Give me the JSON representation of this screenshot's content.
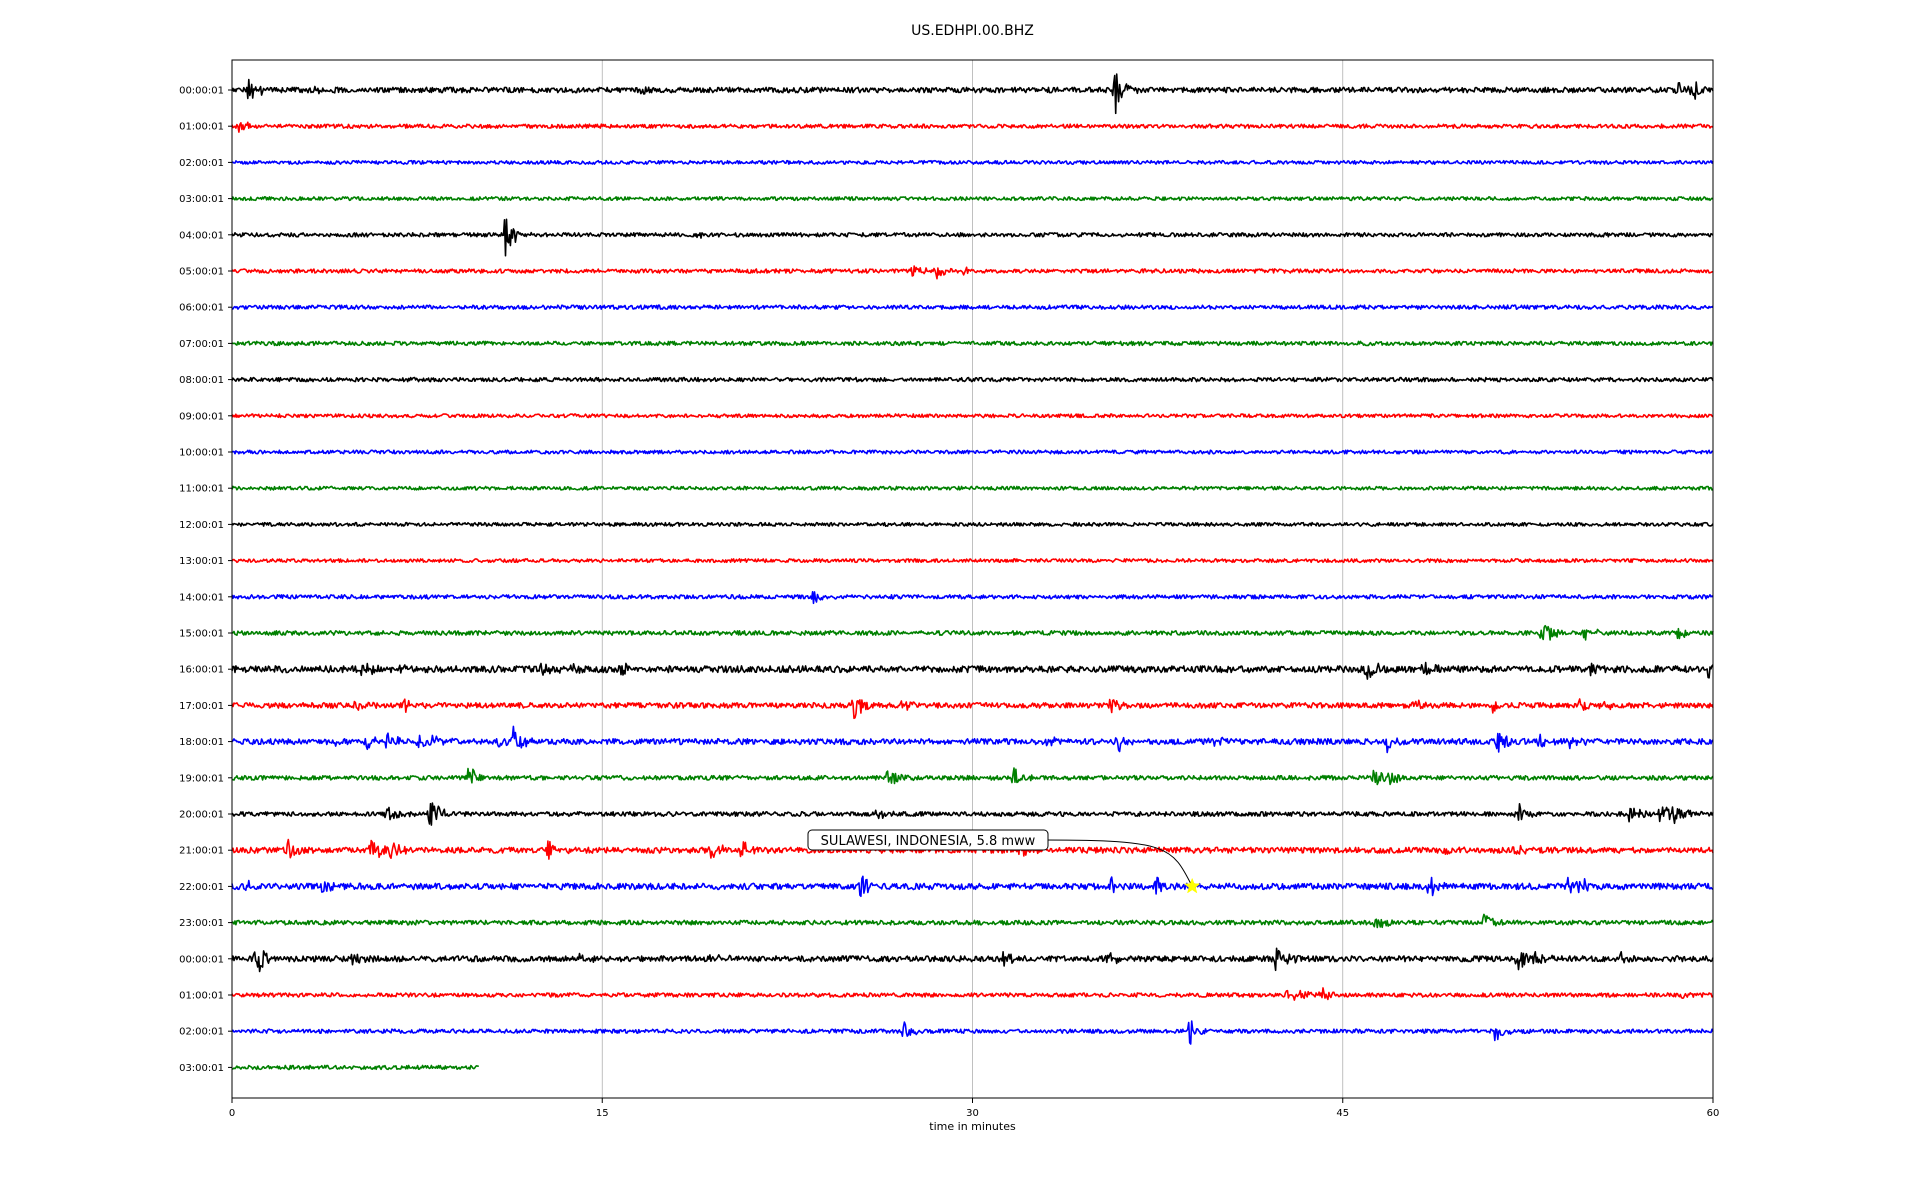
{
  "chart_data": {
    "type": "line",
    "title": "US.EDHPI.00.BHZ",
    "xlabel": "time in minutes",
    "ylabel": "",
    "xlim": [
      0,
      60
    ],
    "grid": true,
    "legend": "none",
    "x_ticks": [
      {
        "value": 0,
        "label": "0"
      },
      {
        "value": 15,
        "label": "15"
      },
      {
        "value": 30,
        "label": "30"
      },
      {
        "value": 45,
        "label": "45"
      },
      {
        "value": 60,
        "label": "60"
      }
    ],
    "trace_colors": [
      "#000000",
      "#ff0000",
      "#0000ff",
      "#008000"
    ],
    "traces": [
      {
        "label": "00:00:01",
        "color": "#000000",
        "noise": 1.2,
        "events": [
          {
            "t": 0.7,
            "amp": 8
          },
          {
            "t": 3.1,
            "amp": 5
          },
          {
            "t": 16.6,
            "amp": 3
          },
          {
            "t": 35.8,
            "amp": 14
          },
          {
            "t": 58.6,
            "amp": 6
          },
          {
            "t": 59.2,
            "amp": 7
          }
        ],
        "end_minute": 60
      },
      {
        "label": "01:00:01",
        "color": "#ff0000",
        "noise": 0.9,
        "events": [
          {
            "t": 0.3,
            "amp": 4
          }
        ],
        "end_minute": 60
      },
      {
        "label": "02:00:01",
        "color": "#0000ff",
        "noise": 0.8,
        "events": [],
        "end_minute": 60
      },
      {
        "label": "03:00:01",
        "color": "#008000",
        "noise": 0.8,
        "events": [],
        "end_minute": 60
      },
      {
        "label": "04:00:01",
        "color": "#000000",
        "noise": 0.9,
        "events": [
          {
            "t": 11.1,
            "amp": 16
          },
          {
            "t": 18.9,
            "amp": 2
          }
        ],
        "end_minute": 60
      },
      {
        "label": "05:00:01",
        "color": "#ff0000",
        "noise": 0.9,
        "events": [
          {
            "t": 27.6,
            "amp": 5
          },
          {
            "t": 28.5,
            "amp": 6
          },
          {
            "t": 29.7,
            "amp": 5
          }
        ],
        "end_minute": 60
      },
      {
        "label": "06:00:01",
        "color": "#0000ff",
        "noise": 0.9,
        "events": [],
        "end_minute": 60
      },
      {
        "label": "07:00:01",
        "color": "#008000",
        "noise": 0.9,
        "events": [],
        "end_minute": 60
      },
      {
        "label": "08:00:01",
        "color": "#000000",
        "noise": 0.9,
        "events": [
          {
            "t": 27.9,
            "amp": 2
          }
        ],
        "end_minute": 60
      },
      {
        "label": "09:00:01",
        "color": "#ff0000",
        "noise": 0.8,
        "events": [],
        "end_minute": 60
      },
      {
        "label": "10:00:01",
        "color": "#0000ff",
        "noise": 0.8,
        "events": [],
        "end_minute": 60
      },
      {
        "label": "11:00:01",
        "color": "#008000",
        "noise": 0.8,
        "events": [],
        "end_minute": 60
      },
      {
        "label": "12:00:01",
        "color": "#000000",
        "noise": 0.8,
        "events": [],
        "end_minute": 60
      },
      {
        "label": "13:00:01",
        "color": "#ff0000",
        "noise": 0.8,
        "events": [],
        "end_minute": 60
      },
      {
        "label": "14:00:01",
        "color": "#0000ff",
        "noise": 0.9,
        "events": [
          {
            "t": 23.5,
            "amp": 5
          }
        ],
        "end_minute": 60
      },
      {
        "label": "15:00:01",
        "color": "#008000",
        "noise": 1.0,
        "events": [
          {
            "t": 53.1,
            "amp": 10
          },
          {
            "t": 54.8,
            "amp": 5
          },
          {
            "t": 58.6,
            "amp": 5
          }
        ],
        "end_minute": 60
      },
      {
        "label": "16:00:01",
        "color": "#000000",
        "noise": 1.5,
        "events": [
          {
            "t": 5.3,
            "amp": 8
          },
          {
            "t": 6.8,
            "amp": 3
          },
          {
            "t": 12.5,
            "amp": 4
          },
          {
            "t": 13.8,
            "amp": 4
          },
          {
            "t": 15.8,
            "amp": 5
          },
          {
            "t": 46.0,
            "amp": 10
          },
          {
            "t": 48.3,
            "amp": 4
          },
          {
            "t": 55.0,
            "amp": 4
          },
          {
            "t": 59.8,
            "amp": 5
          }
        ],
        "end_minute": 60
      },
      {
        "label": "17:00:01",
        "color": "#ff0000",
        "noise": 1.2,
        "events": [
          {
            "t": 5.0,
            "amp": 4
          },
          {
            "t": 7.0,
            "amp": 5
          },
          {
            "t": 25.2,
            "amp": 10
          },
          {
            "t": 27.2,
            "amp": 3
          },
          {
            "t": 35.6,
            "amp": 5
          },
          {
            "t": 47.9,
            "amp": 4
          },
          {
            "t": 51.1,
            "amp": 4
          },
          {
            "t": 54.5,
            "amp": 6
          },
          {
            "t": 55.5,
            "amp": 4
          }
        ],
        "end_minute": 60
      },
      {
        "label": "18:00:01",
        "color": "#0000ff",
        "noise": 1.3,
        "events": [
          {
            "t": 3.8,
            "amp": 4
          },
          {
            "t": 5.5,
            "amp": 5
          },
          {
            "t": 6.3,
            "amp": 6
          },
          {
            "t": 7.6,
            "amp": 5
          },
          {
            "t": 8.1,
            "amp": 4
          },
          {
            "t": 10.8,
            "amp": 7
          },
          {
            "t": 11.4,
            "amp": 9
          },
          {
            "t": 33.1,
            "amp": 4
          },
          {
            "t": 35.9,
            "amp": 7
          },
          {
            "t": 39.6,
            "amp": 5
          },
          {
            "t": 46.8,
            "amp": 6
          },
          {
            "t": 51.3,
            "amp": 7
          },
          {
            "t": 53.0,
            "amp": 4
          },
          {
            "t": 54.2,
            "amp": 4
          }
        ],
        "end_minute": 60
      },
      {
        "label": "19:00:01",
        "color": "#008000",
        "noise": 1.0,
        "events": [
          {
            "t": 9.6,
            "amp": 10
          },
          {
            "t": 26.6,
            "amp": 8
          },
          {
            "t": 31.7,
            "amp": 8
          },
          {
            "t": 46.3,
            "amp": 7
          },
          {
            "t": 46.9,
            "amp": 6
          }
        ],
        "end_minute": 60
      },
      {
        "label": "20:00:01",
        "color": "#000000",
        "noise": 1.0,
        "events": [
          {
            "t": 6.3,
            "amp": 5
          },
          {
            "t": 8.0,
            "amp": 12
          },
          {
            "t": 26.2,
            "amp": 5
          },
          {
            "t": 52.1,
            "amp": 7
          },
          {
            "t": 56.6,
            "amp": 7
          },
          {
            "t": 57.9,
            "amp": 9
          },
          {
            "t": 58.4,
            "amp": 7
          }
        ],
        "end_minute": 60
      },
      {
        "label": "21:00:01",
        "color": "#ff0000",
        "noise": 1.3,
        "events": [
          {
            "t": 2.3,
            "amp": 6
          },
          {
            "t": 5.6,
            "amp": 9
          },
          {
            "t": 6.4,
            "amp": 8
          },
          {
            "t": 12.8,
            "amp": 6
          },
          {
            "t": 19.4,
            "amp": 8
          },
          {
            "t": 20.6,
            "amp": 7
          },
          {
            "t": 31.9,
            "amp": 6
          },
          {
            "t": 49.0,
            "amp": 4
          },
          {
            "t": 52.0,
            "amp": 4
          }
        ],
        "end_minute": 60
      },
      {
        "label": "22:00:01",
        "color": "#0000ff",
        "noise": 1.4,
        "events": [
          {
            "t": 0.6,
            "amp": 5
          },
          {
            "t": 3.6,
            "amp": 6
          },
          {
            "t": 25.5,
            "amp": 9
          },
          {
            "t": 35.6,
            "amp": 5
          },
          {
            "t": 37.4,
            "amp": 6
          },
          {
            "t": 48.5,
            "amp": 7
          },
          {
            "t": 54.1,
            "amp": 6
          },
          {
            "t": 54.6,
            "amp": 6
          }
        ],
        "end_minute": 60
      },
      {
        "label": "23:00:01",
        "color": "#008000",
        "noise": 1.0,
        "events": [
          {
            "t": 46.3,
            "amp": 6
          },
          {
            "t": 50.7,
            "amp": 7
          }
        ],
        "end_minute": 60
      },
      {
        "label": "00:00:01",
        "color": "#000000",
        "noise": 1.3,
        "events": [
          {
            "t": 1.0,
            "amp": 11
          },
          {
            "t": 4.8,
            "amp": 4
          },
          {
            "t": 14.1,
            "amp": 4
          },
          {
            "t": 19.4,
            "amp": 5
          },
          {
            "t": 31.3,
            "amp": 6
          },
          {
            "t": 35.5,
            "amp": 4
          },
          {
            "t": 42.3,
            "amp": 10
          },
          {
            "t": 52.1,
            "amp": 10
          },
          {
            "t": 52.8,
            "amp": 7
          },
          {
            "t": 56.3,
            "amp": 4
          }
        ],
        "end_minute": 60
      },
      {
        "label": "01:00:01",
        "color": "#ff0000",
        "noise": 0.9,
        "events": [
          {
            "t": 42.8,
            "amp": 5
          },
          {
            "t": 43.3,
            "amp": 6
          },
          {
            "t": 44.1,
            "amp": 5
          },
          {
            "t": 58.8,
            "amp": 3
          }
        ],
        "end_minute": 60
      },
      {
        "label": "02:00:01",
        "color": "#0000ff",
        "noise": 0.9,
        "events": [
          {
            "t": 27.2,
            "amp": 6
          },
          {
            "t": 38.8,
            "amp": 9
          },
          {
            "t": 51.2,
            "amp": 7
          }
        ],
        "end_minute": 60
      },
      {
        "label": "03:00:01",
        "color": "#008000",
        "noise": 0.9,
        "events": [],
        "end_minute": 10
      }
    ],
    "annotations": [
      {
        "text": "SULAWESI, INDONESIA, 5.8 mww",
        "trace_label": "22:00:01",
        "trace_index": 22,
        "minute": 38.9,
        "marker": "star",
        "marker_color": "#ffff00"
      }
    ]
  }
}
